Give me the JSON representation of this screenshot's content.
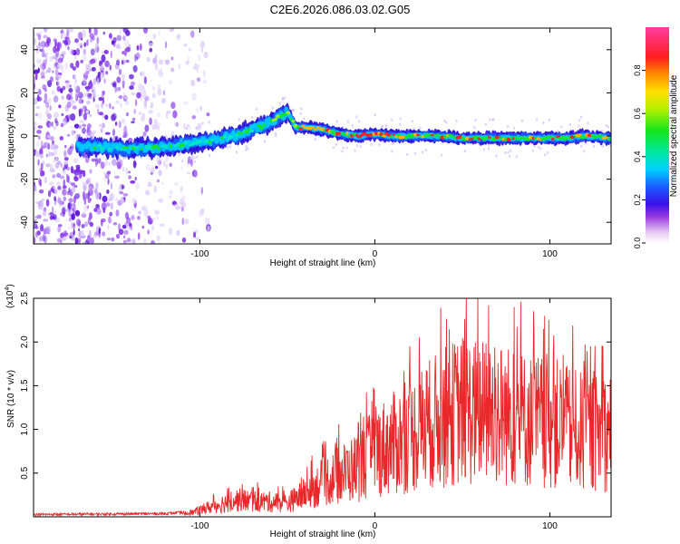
{
  "title": "C2E6.2026.086.03.02.G05",
  "chart_data": [
    {
      "type": "heatmap",
      "name": "spectrogram",
      "xlabel": "Height of straight line (km)",
      "ylabel": "Frequency (Hz)",
      "xlim": [
        -195,
        135
      ],
      "ylim": [
        -50,
        50
      ],
      "xticks": [
        -100,
        0,
        100
      ],
      "xtick_labels": [
        "-100",
        "0",
        "100"
      ],
      "yticks": [
        -40,
        -20,
        0,
        20,
        40
      ],
      "ytick_labels": [
        "-40",
        "-20",
        "0",
        "20",
        "40"
      ],
      "colorbar": {
        "label": "Normalized spectral amplitude",
        "range": [
          0,
          1
        ],
        "ticks": [
          0,
          0.2,
          0.4,
          0.6,
          0.8
        ],
        "tick_labels": [
          "0.0",
          "0.2",
          "0.4",
          "0.6",
          "0.8"
        ]
      },
      "ridge": {
        "x": [
          -160,
          -140,
          -120,
          -100,
          -80,
          -70,
          -60,
          -50,
          -45,
          -40,
          -30,
          -20,
          -10,
          0,
          10,
          20,
          35,
          50,
          60,
          70,
          80,
          90,
          100,
          110,
          120,
          135
        ],
        "y": [
          -5,
          -6,
          -5,
          -3,
          0,
          3,
          6,
          11,
          4,
          4,
          3,
          1,
          0,
          1,
          0,
          0,
          0,
          -1,
          -1,
          -1,
          -1,
          -1,
          -1,
          -1,
          0,
          -1
        ]
      },
      "noise_region_x": [
        -195,
        -110
      ]
    },
    {
      "type": "line",
      "name": "snr",
      "xlabel": "Height of straight line (km)",
      "ylabel": "SNR (10 * v/v)",
      "y_multiplier": "(x10",
      "y_multiplier_exp": "4",
      "y_multiplier_close": ")",
      "xlim": [
        -195,
        135
      ],
      "ylim": [
        0,
        2.5
      ],
      "xticks": [
        -100,
        0,
        100
      ],
      "xtick_labels": [
        "-100",
        "0",
        "100"
      ],
      "yticks": [
        0.5,
        1.0,
        1.5,
        2.0,
        2.5
      ],
      "ytick_labels": [
        "0.5",
        "1.0",
        "1.5",
        "2.0",
        "2.5"
      ],
      "color": "#e8282a",
      "envelope": {
        "x": [
          -195,
          -120,
          -105,
          -95,
          -80,
          -65,
          -50,
          -40,
          -30,
          -20,
          -10,
          0,
          10,
          20,
          30,
          40,
          50,
          60,
          70,
          80,
          90,
          100,
          110,
          120,
          135
        ],
        "y": [
          0.02,
          0.03,
          0.05,
          0.12,
          0.22,
          0.2,
          0.18,
          0.3,
          0.45,
          0.55,
          0.65,
          0.85,
          0.95,
          1.05,
          1.2,
          1.3,
          1.4,
          1.35,
          1.35,
          1.3,
          1.25,
          1.25,
          1.15,
          1.1,
          1.1
        ]
      }
    }
  ]
}
